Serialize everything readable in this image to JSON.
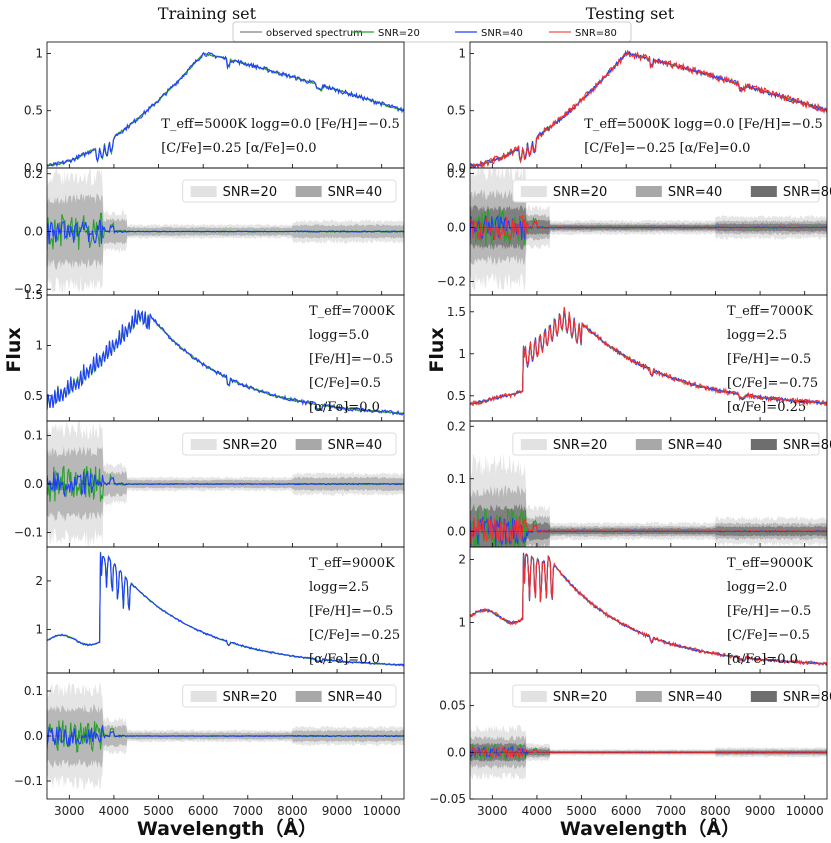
{
  "figure": {
    "left_title": "Training set",
    "right_title": "Testing set",
    "xlabel": "Wavelength（Å）",
    "ylabel": "Flux"
  },
  "legend": [
    {
      "label": "observed spectrum",
      "color": "#808080"
    },
    {
      "label": "SNR=20",
      "color": "#2ca02c"
    },
    {
      "label": "SNR=40",
      "color": "#1f3fff"
    },
    {
      "label": "SNR=80",
      "color": "#f05050"
    }
  ],
  "colors": {
    "observed": "#808080",
    "snr20": "#2ca02c",
    "snr40": "#1f3fff",
    "snr80": "#f03030",
    "band20": "#e2e2e2",
    "band40": "#a8a8a8",
    "band80": "#6e6e6e"
  },
  "chart_data": [
    {
      "id": "L1",
      "type": "line",
      "column": "Training set",
      "kind": "spectrum",
      "xlim": [
        2500,
        10500
      ],
      "ylim": [
        0,
        1.1
      ],
      "yticks": [
        0.0,
        0.5,
        1.0
      ],
      "xticks": [],
      "shape": "cool",
      "params": {
        "peak_x": 6000,
        "peak_y": 1.0,
        "start_y": 0.02,
        "end_y": 0.5
      },
      "series": [
        "observed spectrum",
        "SNR=20",
        "SNR=40"
      ],
      "annotations": [
        "T_eff=5000K   logg=0.0   [Fe/H]=−0.5",
        "[C/Fe]=0.25   [α/Fe]=0.0"
      ]
    },
    {
      "id": "L2",
      "type": "line",
      "column": "Training set",
      "kind": "residual",
      "xlim": [
        2500,
        10500
      ],
      "ylim": [
        -0.22,
        0.22
      ],
      "yticks": [
        -0.2,
        0.0,
        0.2
      ],
      "xticks": [],
      "bands": [
        "SNR=20",
        "SNR=40"
      ],
      "amp": 0.22,
      "series": [
        "SNR=20",
        "SNR=40"
      ]
    },
    {
      "id": "L3",
      "type": "line",
      "column": "Training set",
      "kind": "spectrum",
      "xlim": [
        2500,
        10500
      ],
      "ylim": [
        0.25,
        1.5
      ],
      "yticks": [
        0.5,
        1.0,
        1.5
      ],
      "xticks": [],
      "shape": "mid",
      "params": {
        "peak_x": 4600,
        "peak_y": 1.42,
        "start_y": 0.55,
        "end_y": 0.28
      },
      "series": [
        "observed spectrum",
        "SNR=20",
        "SNR=40"
      ],
      "annotations": [
        "T_eff=7000K",
        "logg=5.0",
        "[Fe/H]=−0.5",
        "[C/Fe]=0.5",
        "[α/Fe]=0.0"
      ]
    },
    {
      "id": "L4",
      "type": "line",
      "column": "Training set",
      "kind": "residual",
      "xlim": [
        2500,
        10500
      ],
      "ylim": [
        -0.13,
        0.13
      ],
      "yticks": [
        -0.1,
        0.0,
        0.1
      ],
      "xticks": [],
      "bands": [
        "SNR=20",
        "SNR=40"
      ],
      "amp": 0.13,
      "series": [
        "SNR=20",
        "SNR=40"
      ]
    },
    {
      "id": "L5",
      "type": "line",
      "column": "Training set",
      "kind": "spectrum",
      "xlim": [
        2500,
        10500
      ],
      "ylim": [
        0.1,
        2.7
      ],
      "yticks": [
        1,
        2
      ],
      "xticks": [],
      "shape": "hot",
      "params": {
        "peak_x": 3800,
        "peak_y": 2.6,
        "start_y": 0.78,
        "end_y": 0.2
      },
      "series": [
        "observed spectrum",
        "SNR=20",
        "SNR=40"
      ],
      "annotations": [
        "T_eff=9000K",
        "logg=2.5",
        "[Fe/H]=−0.5",
        "[C/Fe]=−0.25",
        "[α/Fe]=0.0"
      ]
    },
    {
      "id": "L6",
      "type": "line",
      "column": "Training set",
      "kind": "residual",
      "xlim": [
        2500,
        10500
      ],
      "ylim": [
        -0.14,
        0.14
      ],
      "yticks": [
        -0.1,
        0.0,
        0.1
      ],
      "xticks": [
        3000,
        4000,
        5000,
        6000,
        7000,
        8000,
        9000,
        10000
      ],
      "bands": [
        "SNR=20",
        "SNR=40"
      ],
      "amp": 0.12,
      "series": [
        "SNR=20",
        "SNR=40"
      ]
    },
    {
      "id": "R1",
      "type": "line",
      "column": "Testing set",
      "kind": "spectrum",
      "xlim": [
        2500,
        10500
      ],
      "ylim": [
        0,
        1.1
      ],
      "yticks": [
        0.0,
        0.5,
        1.0
      ],
      "xticks": [],
      "shape": "cool",
      "params": {
        "peak_x": 6000,
        "peak_y": 1.0,
        "start_y": 0.02,
        "end_y": 0.5
      },
      "series": [
        "observed spectrum",
        "SNR=20",
        "SNR=40",
        "SNR=80"
      ],
      "annotations": [
        "T_eff=5000K   logg=0.0   [Fe/H]=−0.5",
        "[C/Fe]=−0.25  [α/Fe]=0.0"
      ]
    },
    {
      "id": "R2",
      "type": "line",
      "column": "Testing set",
      "kind": "residual",
      "xlim": [
        2500,
        10500
      ],
      "ylim": [
        -0.25,
        0.22
      ],
      "yticks": [
        -0.2,
        0.0,
        0.2
      ],
      "xticks": [],
      "bands": [
        "SNR=20",
        "SNR=40",
        "SNR=80"
      ],
      "amp": 0.24,
      "series": [
        "SNR=20",
        "SNR=40",
        "SNR=80"
      ]
    },
    {
      "id": "R3",
      "type": "line",
      "column": "Testing set",
      "kind": "spectrum",
      "xlim": [
        2500,
        10500
      ],
      "ylim": [
        0.2,
        1.7
      ],
      "yticks": [
        0.5,
        1.0,
        1.5
      ],
      "xticks": [],
      "shape": "step",
      "params": {
        "peak_x": 4600,
        "peak_y": 1.6,
        "start_y": 0.4,
        "end_y": 0.35
      },
      "series": [
        "observed spectrum",
        "SNR=20",
        "SNR=40",
        "SNR=80"
      ],
      "annotations": [
        "T_eff=7000K",
        "logg=2.5",
        "[Fe/H]=−0.5",
        "[C/Fe]=−0.75",
        "[α/Fe]=0.25"
      ]
    },
    {
      "id": "R4",
      "type": "line",
      "column": "Testing set",
      "kind": "residual",
      "xlim": [
        2500,
        10500
      ],
      "ylim": [
        -0.03,
        0.21
      ],
      "yticks": [
        0.0,
        0.1,
        0.2
      ],
      "xticks": [],
      "bands": [
        "SNR=20",
        "SNR=40",
        "SNR=80"
      ],
      "amp": 0.15,
      "series": [
        "SNR=20",
        "SNR=40",
        "SNR=80"
      ]
    },
    {
      "id": "R5",
      "type": "line",
      "column": "Testing set",
      "kind": "spectrum",
      "xlim": [
        2500,
        10500
      ],
      "ylim": [
        0.2,
        2.2
      ],
      "yticks": [
        1,
        2
      ],
      "xticks": [],
      "shape": "hot",
      "params": {
        "peak_x": 4200,
        "peak_y": 2.1,
        "start_y": 1.1,
        "end_y": 0.3
      },
      "series": [
        "observed spectrum",
        "SNR=20",
        "SNR=40",
        "SNR=80"
      ],
      "annotations": [
        "T_eff=9000K",
        "logg=2.0",
        "[Fe/H]=−0.5",
        "[C/Fe]=−0.5",
        "[α/Fe]=0.0"
      ]
    },
    {
      "id": "R6",
      "type": "line",
      "column": "Testing set",
      "kind": "residual",
      "xlim": [
        2500,
        10500
      ],
      "ylim": [
        -0.05,
        0.085
      ],
      "yticks": [
        -0.05,
        0.0,
        0.05
      ],
      "xticks": [
        3000,
        4000,
        5000,
        6000,
        7000,
        8000,
        9000,
        10000
      ],
      "bands": [
        "SNR=20",
        "SNR=40",
        "SNR=80"
      ],
      "amp": 0.03,
      "series": [
        "SNR=20",
        "SNR=40",
        "SNR=80"
      ]
    }
  ]
}
